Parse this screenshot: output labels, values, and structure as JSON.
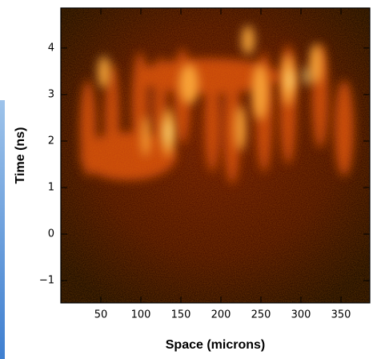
{
  "chart_data": {
    "type": "heatmap",
    "xlabel": "Space (microns)",
    "ylabel": "Time (ns)",
    "xlim": [
      0,
      386
    ],
    "ylim": [
      -1.48,
      4.86
    ],
    "xticks": [
      50,
      100,
      150,
      200,
      250,
      300,
      350
    ],
    "yticks": [
      {
        "value": -1,
        "label": "−1"
      },
      0,
      1,
      2,
      3,
      4
    ]
  }
}
